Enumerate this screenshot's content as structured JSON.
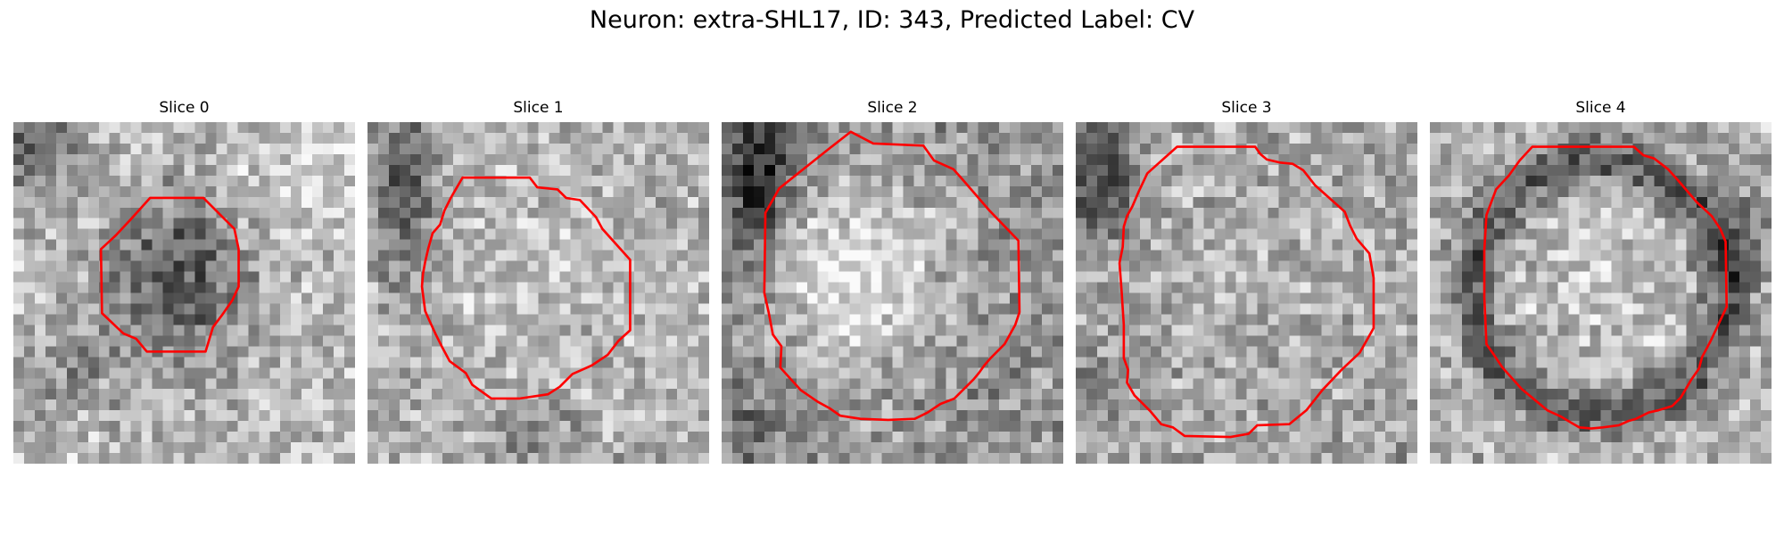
{
  "figure": {
    "suptitle": "Neuron: extra-SHL17, ID: 343, Predicted Label: CV"
  },
  "colors": {
    "contour": "#ff0000",
    "colormap": "gray"
  },
  "panels": [
    {
      "title": "Slice 0",
      "pattern": "dark-cell-body-with-bright-surround"
    },
    {
      "title": "Slice 1",
      "pattern": "speckled-cell-with-dark-corner"
    },
    {
      "title": "Slice 2",
      "pattern": "bright-center-with-dark-edge-left"
    },
    {
      "title": "Slice 3",
      "pattern": "speckled-large-cell"
    },
    {
      "title": "Slice 4",
      "pattern": "dark-ring-cell-membrane"
    }
  ]
}
